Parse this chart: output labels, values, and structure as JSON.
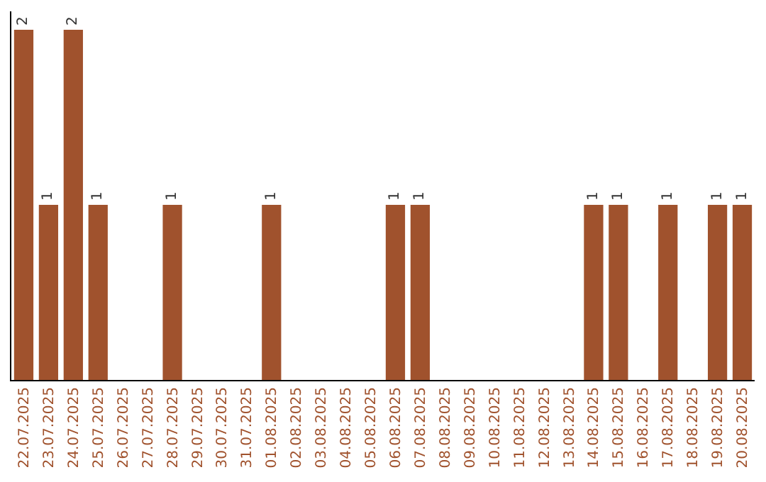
{
  "chart_data": {
    "type": "bar",
    "categories": [
      "22.07.2025",
      "23.07.2025",
      "24.07.2025",
      "25.07.2025",
      "26.07.2025",
      "27.07.2025",
      "28.07.2025",
      "29.07.2025",
      "30.07.2025",
      "31.07.2025",
      "01.08.2025",
      "02.08.2025",
      "03.08.2025",
      "04.08.2025",
      "05.08.2025",
      "06.08.2025",
      "07.08.2025",
      "08.08.2025",
      "09.08.2025",
      "10.08.2025",
      "11.08.2025",
      "12.08.2025",
      "13.08.2025",
      "14.08.2025",
      "15.08.2025",
      "16.08.2025",
      "17.08.2025",
      "18.08.2025",
      "19.08.2025",
      "20.08.2025"
    ],
    "values": [
      2,
      1,
      2,
      1,
      null,
      null,
      1,
      null,
      null,
      null,
      1,
      null,
      null,
      null,
      null,
      1,
      1,
      null,
      null,
      null,
      null,
      null,
      null,
      1,
      1,
      null,
      1,
      null,
      1,
      1
    ],
    "value_labels": [
      "2",
      "1",
      "2",
      "1",
      null,
      null,
      "1",
      null,
      null,
      null,
      "1",
      null,
      null,
      null,
      null,
      "1",
      "1",
      null,
      null,
      null,
      null,
      null,
      null,
      "1",
      "1",
      null,
      "1",
      null,
      "1",
      "1"
    ],
    "color": "#a0522d",
    "legend": false,
    "tick_labels": "x"
  }
}
